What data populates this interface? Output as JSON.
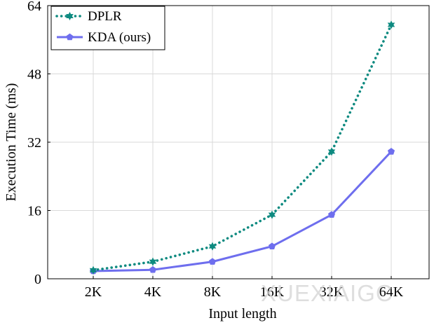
{
  "chart_data": {
    "type": "line",
    "title": "",
    "xlabel": "Input length",
    "ylabel": "Execution Time (ms)",
    "categories": [
      "2K",
      "4K",
      "8K",
      "16K",
      "32K",
      "64K"
    ],
    "yticks": [
      "0",
      "16",
      "32",
      "48",
      "64"
    ],
    "ylim": [
      0,
      64
    ],
    "grid": true,
    "legend_position": "top-left",
    "series": [
      {
        "name": "DPLR",
        "color": "#0e8a80",
        "style": "dotted",
        "marker": "star",
        "values": [
          2.0,
          4.0,
          7.6,
          15.0,
          29.8,
          59.5
        ]
      },
      {
        "name": "KDA (ours)",
        "color": "#6e6eee",
        "style": "solid",
        "marker": "pentagon",
        "values": [
          1.8,
          2.1,
          4.0,
          7.6,
          15.0,
          29.8
        ]
      }
    ]
  },
  "watermark": "XUEXIAIGC"
}
